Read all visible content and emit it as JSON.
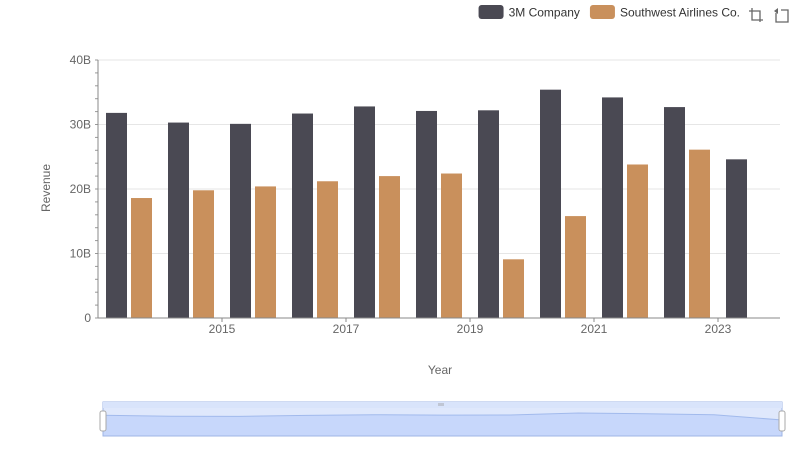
{
  "chart_data": {
    "type": "bar",
    "title": "",
    "xlabel": "Year",
    "ylabel": "Revenue",
    "ylim": [
      0,
      40000000000
    ],
    "yticks": [
      {
        "value": 0,
        "label": "0"
      },
      {
        "value": 10000000000,
        "label": "10B"
      },
      {
        "value": 20000000000,
        "label": "20B"
      },
      {
        "value": 30000000000,
        "label": "30B"
      },
      {
        "value": 40000000000,
        "label": "40B"
      }
    ],
    "categories": [
      "2014",
      "2015",
      "2016",
      "2017",
      "2018",
      "2019",
      "2020",
      "2021",
      "2022",
      "2023",
      "2024"
    ],
    "xtick_labels": [
      "2015",
      "2017",
      "2019",
      "2021",
      "2023"
    ],
    "legend_position": "top-right",
    "grid": true,
    "series": [
      {
        "name": "3M Company",
        "color": "#4a4953",
        "values": [
          31800000000,
          30300000000,
          30100000000,
          31700000000,
          32800000000,
          32100000000,
          32200000000,
          35400000000,
          34200000000,
          32700000000,
          24600000000
        ]
      },
      {
        "name": "Southwest Airlines Co.",
        "color": "#c9905c",
        "values": [
          18600000000,
          19800000000,
          20400000000,
          21200000000,
          22000000000,
          22400000000,
          9100000000,
          15800000000,
          23800000000,
          26100000000,
          null
        ]
      }
    ]
  },
  "toolbar": {
    "icons": [
      "zoom-icon",
      "restore-icon"
    ]
  },
  "datazoom": {
    "range_start_percent": 0,
    "range_end_percent": 100,
    "fill_color": "#d7e2fb"
  }
}
